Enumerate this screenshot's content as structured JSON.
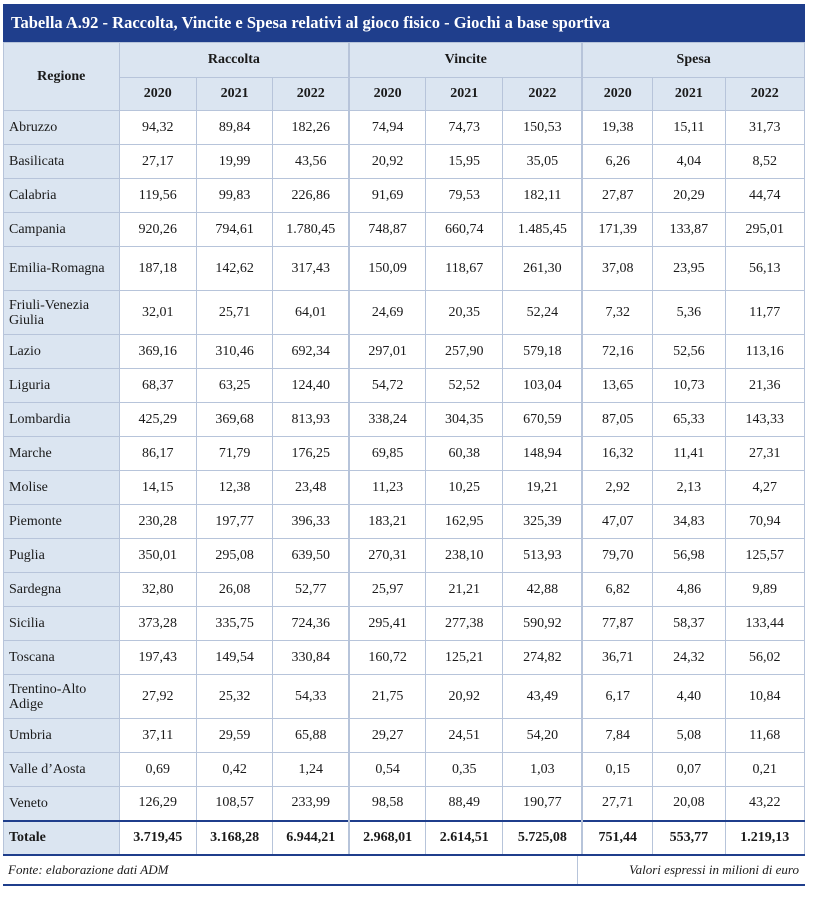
{
  "title": "Tabella A.92 - Raccolta, Vincite e Spesa relativi al gioco fisico - Giochi a base sportiva",
  "header": {
    "region_label": "Regione",
    "groups": [
      "Raccolta",
      "Vincite",
      "Spesa"
    ],
    "years": [
      "2020",
      "2021",
      "2022"
    ]
  },
  "rows": [
    {
      "region": "Abruzzo",
      "values": [
        "94,32",
        "89,84",
        "182,26",
        "74,94",
        "74,73",
        "150,53",
        "19,38",
        "15,11",
        "31,73"
      ]
    },
    {
      "region": "Basilicata",
      "values": [
        "27,17",
        "19,99",
        "43,56",
        "20,92",
        "15,95",
        "35,05",
        "6,26",
        "4,04",
        "8,52"
      ]
    },
    {
      "region": "Calabria",
      "values": [
        "119,56",
        "99,83",
        "226,86",
        "91,69",
        "79,53",
        "182,11",
        "27,87",
        "20,29",
        "44,74"
      ]
    },
    {
      "region": "Campania",
      "values": [
        "920,26",
        "794,61",
        "1.780,45",
        "748,87",
        "660,74",
        "1.485,45",
        "171,39",
        "133,87",
        "295,01"
      ]
    },
    {
      "region": "Emilia-Romagna",
      "values": [
        "187,18",
        "142,62",
        "317,43",
        "150,09",
        "118,67",
        "261,30",
        "37,08",
        "23,95",
        "56,13"
      ]
    },
    {
      "region": "Friuli-Venezia Giulia",
      "values": [
        "32,01",
        "25,71",
        "64,01",
        "24,69",
        "20,35",
        "52,24",
        "7,32",
        "5,36",
        "11,77"
      ]
    },
    {
      "region": "Lazio",
      "values": [
        "369,16",
        "310,46",
        "692,34",
        "297,01",
        "257,90",
        "579,18",
        "72,16",
        "52,56",
        "113,16"
      ]
    },
    {
      "region": "Liguria",
      "values": [
        "68,37",
        "63,25",
        "124,40",
        "54,72",
        "52,52",
        "103,04",
        "13,65",
        "10,73",
        "21,36"
      ]
    },
    {
      "region": "Lombardia",
      "values": [
        "425,29",
        "369,68",
        "813,93",
        "338,24",
        "304,35",
        "670,59",
        "87,05",
        "65,33",
        "143,33"
      ]
    },
    {
      "region": "Marche",
      "values": [
        "86,17",
        "71,79",
        "176,25",
        "69,85",
        "60,38",
        "148,94",
        "16,32",
        "11,41",
        "27,31"
      ]
    },
    {
      "region": "Molise",
      "values": [
        "14,15",
        "12,38",
        "23,48",
        "11,23",
        "10,25",
        "19,21",
        "2,92",
        "2,13",
        "4,27"
      ]
    },
    {
      "region": "Piemonte",
      "values": [
        "230,28",
        "197,77",
        "396,33",
        "183,21",
        "162,95",
        "325,39",
        "47,07",
        "34,83",
        "70,94"
      ]
    },
    {
      "region": "Puglia",
      "values": [
        "350,01",
        "295,08",
        "639,50",
        "270,31",
        "238,10",
        "513,93",
        "79,70",
        "56,98",
        "125,57"
      ]
    },
    {
      "region": "Sardegna",
      "values": [
        "32,80",
        "26,08",
        "52,77",
        "25,97",
        "21,21",
        "42,88",
        "6,82",
        "4,86",
        "9,89"
      ]
    },
    {
      "region": "Sicilia",
      "values": [
        "373,28",
        "335,75",
        "724,36",
        "295,41",
        "277,38",
        "590,92",
        "77,87",
        "58,37",
        "133,44"
      ]
    },
    {
      "region": "Toscana",
      "values": [
        "197,43",
        "149,54",
        "330,84",
        "160,72",
        "125,21",
        "274,82",
        "36,71",
        "24,32",
        "56,02"
      ]
    },
    {
      "region": "Trentino-Alto Adige",
      "values": [
        "27,92",
        "25,32",
        "54,33",
        "21,75",
        "20,92",
        "43,49",
        "6,17",
        "4,40",
        "10,84"
      ]
    },
    {
      "region": "Umbria",
      "values": [
        "37,11",
        "29,59",
        "65,88",
        "29,27",
        "24,51",
        "54,20",
        "7,84",
        "5,08",
        "11,68"
      ]
    },
    {
      "region": "Valle d’Aosta",
      "values": [
        "0,69",
        "0,42",
        "1,24",
        "0,54",
        "0,35",
        "1,03",
        "0,15",
        "0,07",
        "0,21"
      ]
    },
    {
      "region": "Veneto",
      "values": [
        "126,29",
        "108,57",
        "233,99",
        "98,58",
        "88,49",
        "190,77",
        "27,71",
        "20,08",
        "43,22"
      ]
    }
  ],
  "total": {
    "region": "Totale",
    "values": [
      "3.719,45",
      "3.168,28",
      "6.944,21",
      "2.968,01",
      "2.614,51",
      "5.725,08",
      "751,44",
      "553,77",
      "1.219,13"
    ]
  },
  "footer": {
    "source": "Fonte: elaborazione dati ADM",
    "unit_note": "Valori espressi in milioni di euro"
  }
}
